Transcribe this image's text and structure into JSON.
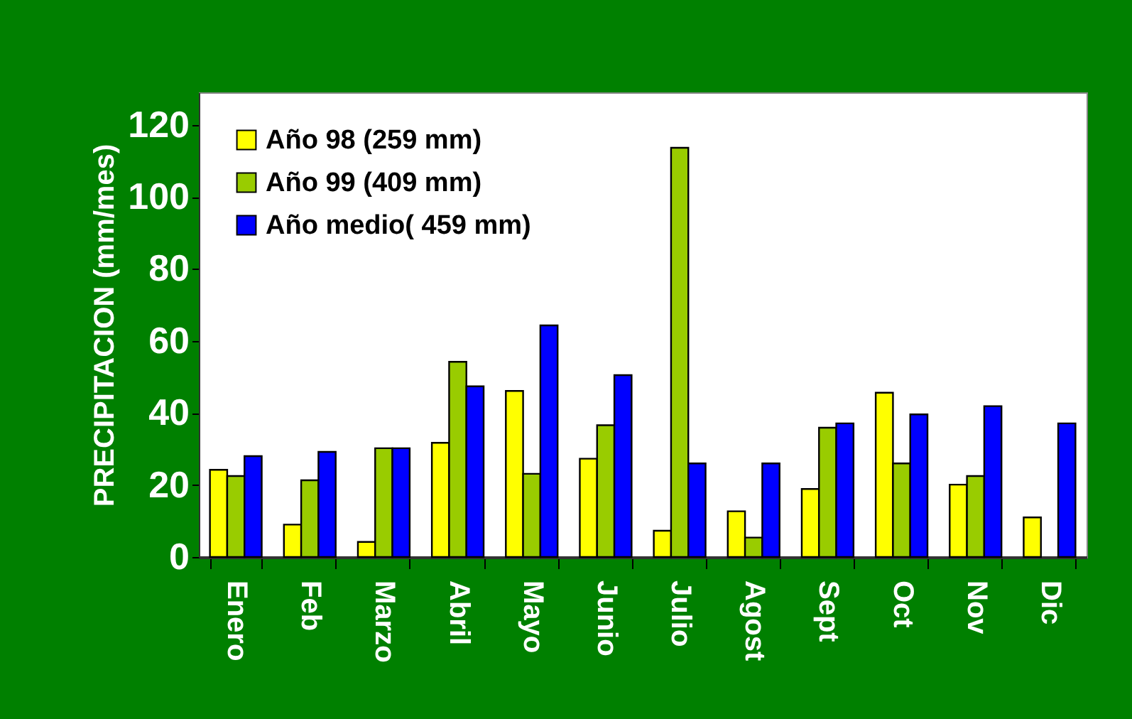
{
  "chart_data": {
    "type": "bar",
    "ylabel": "PRECIPITACION (mm/mes)",
    "categories": [
      "Enero",
      "Feb",
      "Marzo",
      "Abril",
      "Mayo",
      "Junio",
      "Julio",
      "Agost",
      "Sept",
      "Oct",
      "Nov",
      "Dic"
    ],
    "series": [
      {
        "name": "Año 98 (259 mm)",
        "color": "#ffff00",
        "values": [
          24.2,
          9,
          4.2,
          31.7,
          46.1,
          27.3,
          7.3,
          12.7,
          18.9,
          45.6,
          20.1,
          11
        ]
      },
      {
        "name": "Año 99 (409 mm)",
        "color": "#99cc00",
        "values": [
          22.5,
          21.3,
          30.2,
          54.2,
          23.1,
          36.6,
          113.6,
          5.4,
          35.9,
          26,
          22.5,
          null
        ]
      },
      {
        "name": "Año medio( 459 mm)",
        "color": "#0000ff",
        "values": [
          28,
          29.2,
          30.2,
          47.4,
          64.3,
          50.5,
          26,
          26,
          37.1,
          39.6,
          41.9,
          37.1
        ]
      }
    ],
    "ylim": [
      0,
      129
    ],
    "yticks": [
      0,
      20,
      40,
      60,
      80,
      100,
      120
    ],
    "grid": false,
    "legend": "top left"
  }
}
